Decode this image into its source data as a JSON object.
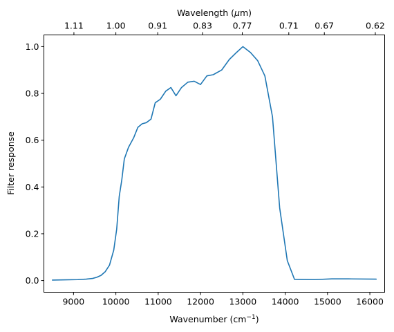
{
  "chart_data": {
    "type": "line",
    "xlabel": "Wavenumber (cm",
    "xlabel_sup": "−1",
    "xlabel_tail": ")",
    "ylabel": "Filter response",
    "top_label": "Wavelength (",
    "top_label_mu": "μ",
    "top_label_tail": "m)",
    "xlim": [
      8300,
      16350
    ],
    "ylim": [
      -0.05,
      1.05
    ],
    "x_ticks": [
      9000,
      10000,
      11000,
      12000,
      13000,
      14000,
      15000,
      16000
    ],
    "x_tick_labels": [
      "9000",
      "10000",
      "11000",
      "12000",
      "13000",
      "14000",
      "15000",
      "16000"
    ],
    "y_ticks": [
      0.0,
      0.2,
      0.4,
      0.6,
      0.8,
      1.0
    ],
    "y_tick_labels": [
      "0.0",
      "0.2",
      "0.4",
      "0.6",
      "0.8",
      "1.0"
    ],
    "top_ticks": [
      9009,
      10000,
      10989,
      12048,
      12987,
      14085,
      14925,
      16129
    ],
    "top_tick_labels": [
      "1.11",
      "1.00",
      "0.91",
      "0.83",
      "0.77",
      "0.71",
      "0.67",
      "0.62"
    ],
    "line_color": "#1f77b4",
    "series": [
      {
        "x": [
          8500,
          8800,
          9100,
          9300,
          9450,
          9550,
          9650,
          9750,
          9850,
          9950,
          10020,
          10080,
          10140,
          10200,
          10300,
          10420,
          10520,
          10620,
          10720,
          10830,
          10930,
          11050,
          11180,
          11300,
          11420,
          11550,
          11700,
          11850,
          12000,
          12150,
          12300,
          12500,
          12680,
          12850,
          13000,
          13180,
          13350,
          13520,
          13700,
          13870,
          14050,
          14220,
          14700,
          15100,
          15500,
          16150
        ],
        "y": [
          0.002,
          0.003,
          0.004,
          0.006,
          0.009,
          0.014,
          0.022,
          0.038,
          0.066,
          0.13,
          0.22,
          0.36,
          0.43,
          0.52,
          0.57,
          0.61,
          0.655,
          0.67,
          0.675,
          0.69,
          0.76,
          0.775,
          0.81,
          0.825,
          0.79,
          0.825,
          0.848,
          0.852,
          0.838,
          0.875,
          0.88,
          0.9,
          0.945,
          0.975,
          1.0,
          0.975,
          0.94,
          0.875,
          0.7,
          0.31,
          0.085,
          0.005,
          0.004,
          0.007,
          0.007,
          0.006
        ]
      }
    ]
  }
}
